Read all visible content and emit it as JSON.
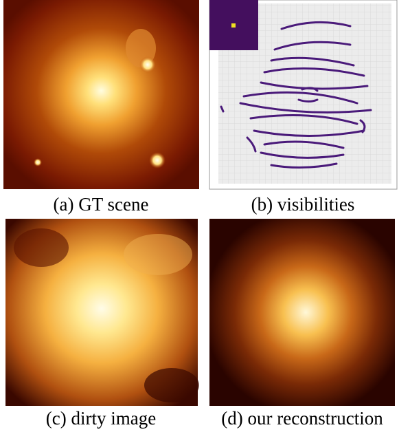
{
  "panels": [
    {
      "caption": "(a) GT scene"
    },
    {
      "caption": "(b) visibilities"
    },
    {
      "caption": "(c) dirty image"
    },
    {
      "caption": "(d) our reconstruction"
    }
  ]
}
